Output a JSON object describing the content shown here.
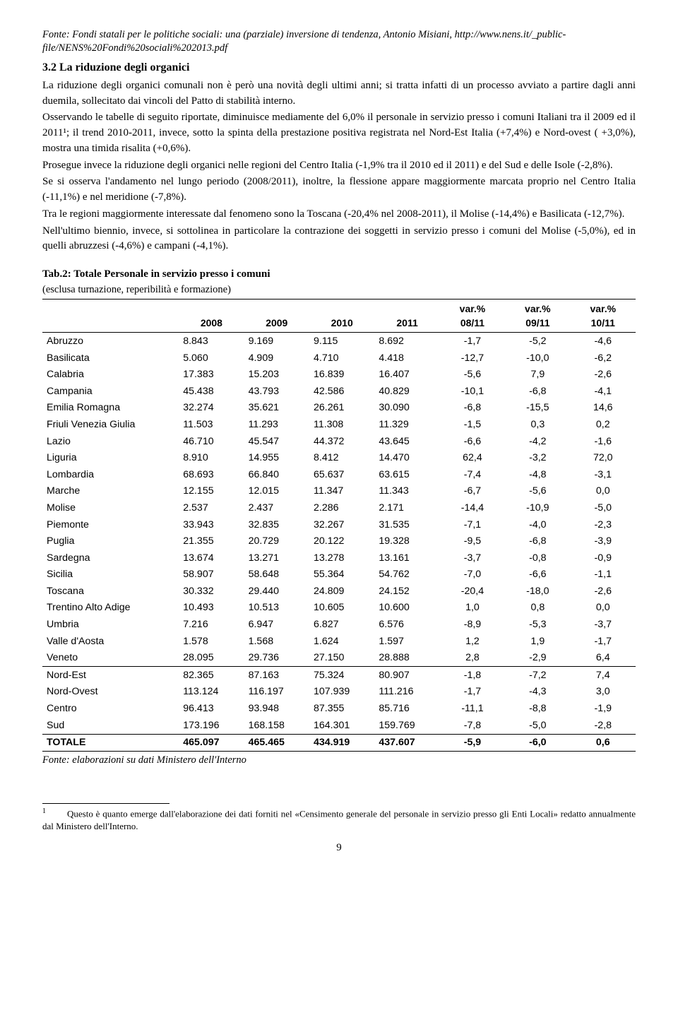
{
  "source_header": "Fonte: Fondi statali per le politiche sociali: una (parziale) inversione di tendenza, Antonio Misiani, http://www.nens.it/_public-file/NENS%20Fondi%20sociali%202013.pdf",
  "section_heading": "3.2 La riduzione degli organici",
  "paragraphs": [
    "La riduzione degli organici comunali non è però una novità degli ultimi anni; si tratta infatti di un processo avviato a partire dagli anni duemila, sollecitato dai vincoli del Patto di stabilità interno.",
    "Osservando le tabelle di seguito riportate, diminuisce mediamente del 6,0% il personale in servizio presso i comuni Italiani tra il 2009 ed il 2011¹; il trend 2010-2011, invece, sotto la spinta della prestazione positiva registrata nel Nord-Est Italia (+7,4%) e Nord-ovest ( +3,0%), mostra una timida risalita (+0,6%).",
    "Prosegue invece la riduzione degli organici nelle regioni del Centro Italia (-1,9% tra il 2010 ed il 2011) e del Sud e delle Isole (-2,8%).",
    "Se si osserva l'andamento nel lungo periodo (2008/2011), inoltre, la flessione appare maggiormente marcata proprio nel Centro Italia (-11,1%) e nel meridione (-7,8%).",
    "Tra le regioni maggiormente interessate dal fenomeno sono la Toscana (-20,4% nel 2008-2011), il Molise (-14,4%) e Basilicata (-12,7%).",
    "Nell'ultimo biennio, invece, si sottolinea in particolare la contrazione dei soggetti in servizio presso i comuni del Molise (-5,0%), ed in quelli abruzzesi (-4,6%) e campani (-4,1%)."
  ],
  "table": {
    "title": "Tab.2: Totale Personale in servizio presso i comuni",
    "subtitle": "(esclusa turnazione, reperibilità e formazione)",
    "columns": [
      "",
      "2008",
      "2009",
      "2010",
      "2011",
      "var.% 08/11",
      "var.% 09/11",
      "var.% 10/11"
    ],
    "header_two_line": [
      {
        "top": "",
        "bottom": ""
      },
      {
        "top": "",
        "bottom": "2008"
      },
      {
        "top": "",
        "bottom": "2009"
      },
      {
        "top": "",
        "bottom": "2010"
      },
      {
        "top": "",
        "bottom": "2011"
      },
      {
        "top": "var.%",
        "bottom": "08/11"
      },
      {
        "top": "var.%",
        "bottom": "09/11"
      },
      {
        "top": "var.%",
        "bottom": "10/11"
      }
    ],
    "rows": [
      [
        "Abruzzo",
        "8.843",
        "9.169",
        "9.115",
        "8.692",
        "-1,7",
        "-5,2",
        "-4,6"
      ],
      [
        "Basilicata",
        "5.060",
        "4.909",
        "4.710",
        "4.418",
        "-12,7",
        "-10,0",
        "-6,2"
      ],
      [
        "Calabria",
        "17.383",
        "15.203",
        "16.839",
        "16.407",
        "-5,6",
        "7,9",
        "-2,6"
      ],
      [
        "Campania",
        "45.438",
        "43.793",
        "42.586",
        "40.829",
        "-10,1",
        "-6,8",
        "-4,1"
      ],
      [
        "Emilia Romagna",
        "32.274",
        "35.621",
        "26.261",
        "30.090",
        "-6,8",
        "-15,5",
        "14,6"
      ],
      [
        "Friuli Venezia Giulia",
        "11.503",
        "11.293",
        "11.308",
        "11.329",
        "-1,5",
        "0,3",
        "0,2"
      ],
      [
        "Lazio",
        "46.710",
        "45.547",
        "44.372",
        "43.645",
        "-6,6",
        "-4,2",
        "-1,6"
      ],
      [
        "Liguria",
        "8.910",
        "14.955",
        "8.412",
        "14.470",
        "62,4",
        "-3,2",
        "72,0"
      ],
      [
        "Lombardia",
        "68.693",
        "66.840",
        "65.637",
        "63.615",
        "-7,4",
        "-4,8",
        "-3,1"
      ],
      [
        "Marche",
        "12.155",
        "12.015",
        "11.347",
        "11.343",
        "-6,7",
        "-5,6",
        "0,0"
      ],
      [
        "Molise",
        "2.537",
        "2.437",
        "2.286",
        "2.171",
        "-14,4",
        "-10,9",
        "-5,0"
      ],
      [
        "Piemonte",
        "33.943",
        "32.835",
        "32.267",
        "31.535",
        "-7,1",
        "-4,0",
        "-2,3"
      ],
      [
        "Puglia",
        "21.355",
        "20.729",
        "20.122",
        "19.328",
        "-9,5",
        "-6,8",
        "-3,9"
      ],
      [
        "Sardegna",
        "13.674",
        "13.271",
        "13.278",
        "13.161",
        "-3,7",
        "-0,8",
        "-0,9"
      ],
      [
        "Sicilia",
        "58.907",
        "58.648",
        "55.364",
        "54.762",
        "-7,0",
        "-6,6",
        "-1,1"
      ],
      [
        "Toscana",
        "30.332",
        "29.440",
        "24.809",
        "24.152",
        "-20,4",
        "-18,0",
        "-2,6"
      ],
      [
        "Trentino Alto Adige",
        "10.493",
        "10.513",
        "10.605",
        "10.600",
        "1,0",
        "0,8",
        "0,0"
      ],
      [
        "Umbria",
        "7.216",
        "6.947",
        "6.827",
        "6.576",
        "-8,9",
        "-5,3",
        "-3,7"
      ],
      [
        "Valle d'Aosta",
        "1.578",
        "1.568",
        "1.624",
        "1.597",
        "1,2",
        "1,9",
        "-1,7"
      ],
      [
        "Veneto",
        "28.095",
        "29.736",
        "27.150",
        "28.888",
        "2,8",
        "-2,9",
        "6,4"
      ]
    ],
    "subtotals": [
      [
        "Nord-Est",
        "82.365",
        "87.163",
        "75.324",
        "80.907",
        "-1,8",
        "-7,2",
        "7,4"
      ],
      [
        "Nord-Ovest",
        "113.124",
        "116.197",
        "107.939",
        "111.216",
        "-1,7",
        "-4,3",
        "3,0"
      ],
      [
        "Centro",
        "96.413",
        "93.948",
        "87.355",
        "85.716",
        "-11,1",
        "-8,8",
        "-1,9"
      ],
      [
        "Sud",
        "173.196",
        "168.158",
        "164.301",
        "159.769",
        "-7,8",
        "-5,0",
        "-2,8"
      ]
    ],
    "total": [
      "TOTALE",
      "465.097",
      "465.465",
      "434.919",
      "437.607",
      "-5,9",
      "-6,0",
      "0,6"
    ],
    "source": "Fonte: elaborazioni su dati Ministero dell'Interno",
    "col_widths": [
      "23%",
      "11%",
      "11%",
      "11%",
      "11%",
      "11%",
      "11%",
      "11%"
    ]
  },
  "footnote": {
    "number": "1",
    "text": "Questo è quanto emerge dall'elaborazione dei dati forniti nel «Censimento generale del personale in servizio presso gli Enti Locali» redatto annualmente dal Ministero dell'Interno."
  },
  "page_number": "9"
}
